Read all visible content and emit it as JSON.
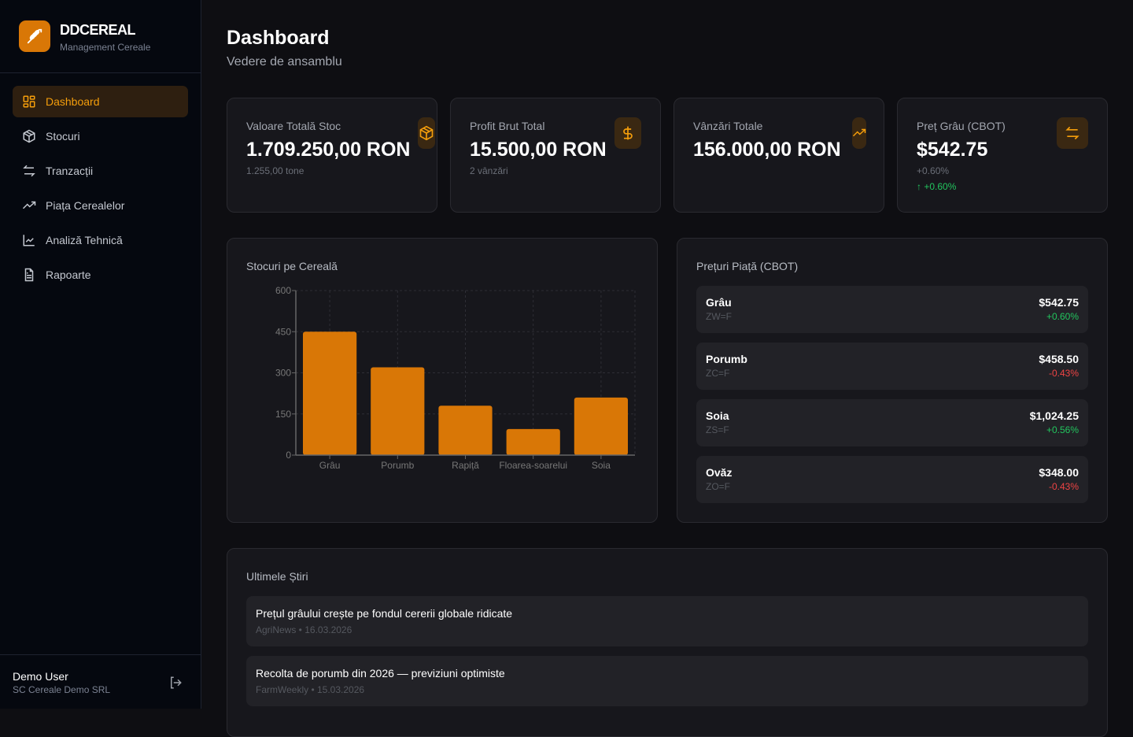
{
  "brand": {
    "name": "DDCEREAL",
    "subtitle": "Management Cereale"
  },
  "nav": [
    {
      "label": "Dashboard",
      "icon": "dashboard-grid-icon",
      "active": true
    },
    {
      "label": "Stocuri",
      "icon": "package-icon"
    },
    {
      "label": "Tranzacții",
      "icon": "transfer-arrows-icon"
    },
    {
      "label": "Piața Cerealelor",
      "icon": "trending-up-icon"
    },
    {
      "label": "Analiză Tehnică",
      "icon": "line-chart-icon"
    },
    {
      "label": "Rapoarte",
      "icon": "file-text-icon"
    }
  ],
  "user": {
    "name": "Demo User",
    "org": "SC Cereale Demo SRL"
  },
  "header": {
    "title": "Dashboard",
    "subtitle": "Vedere de ansamblu"
  },
  "cards": [
    {
      "label": "Valoare Totală Stoc",
      "value": "1.709.250,00 RON",
      "sub": "1.255,00 tone",
      "icon": "package-icon"
    },
    {
      "label": "Profit Brut Total",
      "value": "15.500,00 RON",
      "sub": "2 vânzări",
      "icon": "dollar-icon"
    },
    {
      "label": "Vânzări Totale",
      "value": "156.000,00 RON",
      "icon": "trending-up-icon"
    },
    {
      "label": "Preț Grâu (CBOT)",
      "value": "$542.75",
      "sub": "+0.60%",
      "trend": "↑ +0.60%",
      "icon": "transfer-arrows-icon"
    }
  ],
  "colors": {
    "accent": "#d97706",
    "up": "#22c55e",
    "down": "#ef4444"
  },
  "chart_data": {
    "type": "bar",
    "title": "Stocuri pe Cereală",
    "categories": [
      "Grâu",
      "Porumb",
      "Rapiță",
      "Floarea-soarelui",
      "Soia"
    ],
    "values": [
      450,
      320,
      180,
      95,
      210
    ],
    "yticks": [
      0,
      150,
      300,
      450,
      600
    ],
    "ylim": [
      0,
      600
    ],
    "xlabel": "",
    "ylabel": "",
    "grid": true
  },
  "market": {
    "title": "Prețuri Piață (CBOT)",
    "items": [
      {
        "name": "Grâu",
        "symbol": "ZW=F",
        "price": "$542.75",
        "change": "+0.60%",
        "dir": "up"
      },
      {
        "name": "Porumb",
        "symbol": "ZC=F",
        "price": "$458.50",
        "change": "-0.43%",
        "dir": "down"
      },
      {
        "name": "Soia",
        "symbol": "ZS=F",
        "price": "$1,024.25",
        "change": "+0.56%",
        "dir": "up"
      },
      {
        "name": "Ovăz",
        "symbol": "ZO=F",
        "price": "$348.00",
        "change": "-0.43%",
        "dir": "down"
      }
    ]
  },
  "news": {
    "title": "Ultimele Știri",
    "items": [
      {
        "title": "Prețul grâului crește pe fondul cererii globale ridicate",
        "meta": "AgriNews • 16.03.2026"
      },
      {
        "title": "Recolta de porumb din 2026 — previziuni optimiste",
        "meta": "FarmWeekly • 15.03.2026"
      }
    ]
  }
}
